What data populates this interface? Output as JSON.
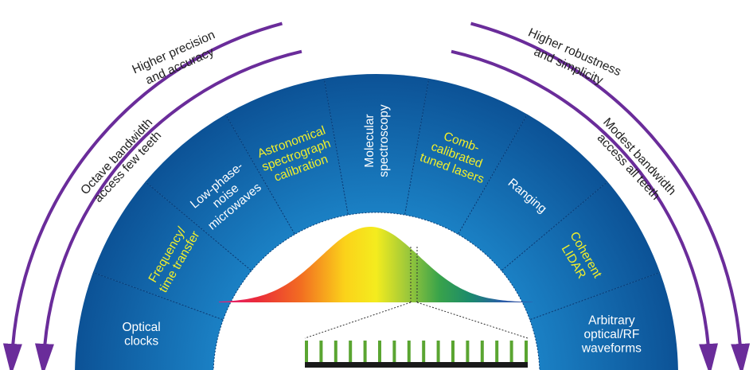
{
  "colors": {
    "arrow": "#6a2c9a",
    "text_white": "#ffffff",
    "text_yellow": "#f2ef2a",
    "fan_light": "#1d88cc",
    "fan_dark": "#0b4f93",
    "comb_tooth": "#5aa531",
    "comb_base": "#1a1a1a"
  },
  "arc_labels": {
    "outer_left": "Higher precision",
    "outer_left_2": "and accuracy",
    "outer_right": "Higher robustness",
    "outer_right_2": "and simplicity",
    "inner_left": "Octave bandwidth",
    "inner_left_2": "access few teeth",
    "inner_right": "Modest bandwidth",
    "inner_right_2": "access all teeth"
  },
  "segments": [
    {
      "id": "optical-clocks",
      "lines": [
        "Optical",
        "clocks"
      ],
      "color": "white"
    },
    {
      "id": "frequency-time-transfer",
      "lines": [
        "Frequency/",
        "time transfer"
      ],
      "color": "yellow"
    },
    {
      "id": "low-phase-noise-microwaves",
      "lines": [
        "Low-phase-",
        "noise",
        "microwaves"
      ],
      "color": "white"
    },
    {
      "id": "astronomical-spectrograph-calibration",
      "lines": [
        "Astronomical",
        "spectrograph",
        "calibration"
      ],
      "color": "yellow"
    },
    {
      "id": "molecular-spectroscopy",
      "lines": [
        "Molecular",
        "spectroscopy"
      ],
      "color": "white"
    },
    {
      "id": "comb-calibrated-tuned-lasers",
      "lines": [
        "Comb-",
        "calibrated",
        "tuned lasers"
      ],
      "color": "yellow"
    },
    {
      "id": "ranging",
      "lines": [
        "Ranging"
      ],
      "color": "white"
    },
    {
      "id": "coherent-lidar",
      "lines": [
        "Coherent",
        "LIDAR"
      ],
      "color": "yellow"
    },
    {
      "id": "arbitrary-optical-rf-waveforms",
      "lines": [
        "Arbitrary",
        "optical/RF",
        "waveforms"
      ],
      "color": "white"
    }
  ],
  "comb": {
    "teeth": 16
  }
}
